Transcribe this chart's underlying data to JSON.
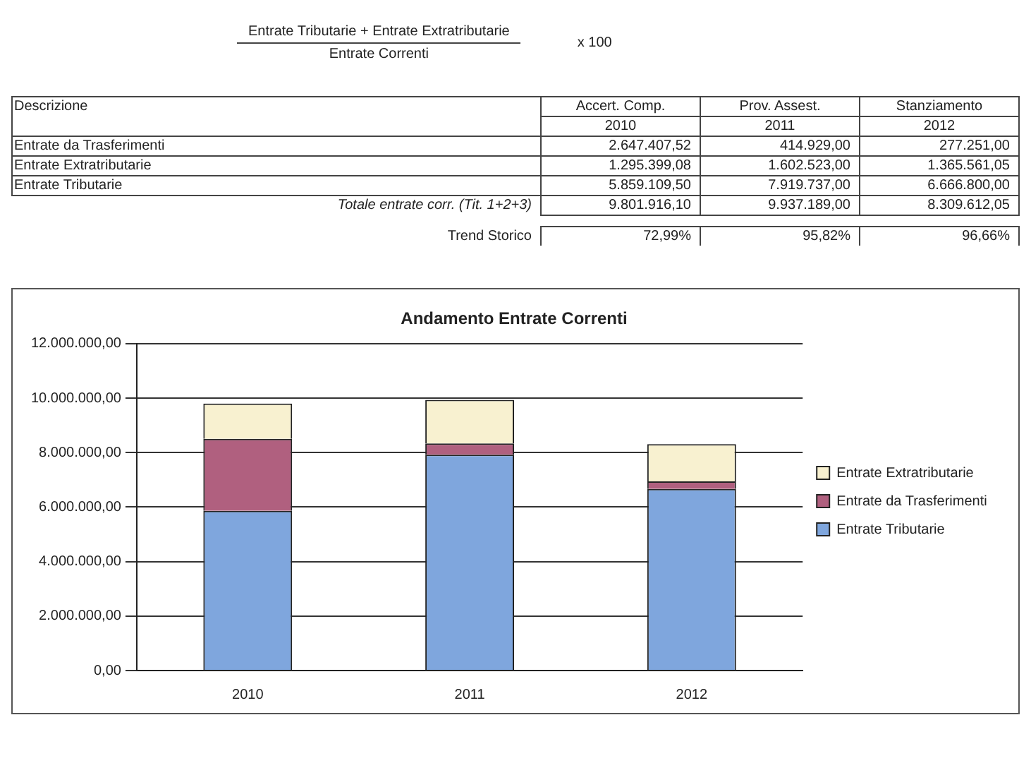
{
  "chart_data": {
    "type": "bar",
    "title": "Andamento Entrate Correnti",
    "categories": [
      "2010",
      "2011",
      "2012"
    ],
    "stacked": true,
    "series": [
      {
        "name": "Entrate Tributarie",
        "color": "#7fa6dd",
        "values": [
          5859109.5,
          7919737,
          6666800
        ]
      },
      {
        "name": "Entrate da Trasferimenti",
        "color": "#b0607f",
        "values": [
          2647407.52,
          414929,
          277251
        ]
      },
      {
        "name": "Entrate Extratributarie",
        "color": "#f8f1d0",
        "values": [
          1295399.08,
          1602523,
          1365561.05
        ]
      }
    ],
    "ylim": [
      0,
      12000000
    ],
    "yticks": [
      {
        "value": 0,
        "label": "0,00"
      },
      {
        "value": 2000000,
        "label": "2.000.000,00"
      },
      {
        "value": 4000000,
        "label": "4.000.000,00"
      },
      {
        "value": 6000000,
        "label": "6.000.000,00"
      },
      {
        "value": 8000000,
        "label": "8.000.000,00"
      },
      {
        "value": 10000000,
        "label": "10.000.000,00"
      },
      {
        "value": 12000000,
        "label": "12.000.000,00"
      }
    ],
    "grid": "y",
    "legend": "right",
    "annotations": [
      "Entrate Tributarie + Entrate Extratributarie",
      "Entrate Correnti",
      "x 100",
      "Descrizione",
      "Accert. Comp.",
      "Prov. Assest.",
      "Stanziamento",
      "2.647.407,52",
      "414.929,00",
      "277.251,00",
      "1.295.399,08",
      "1.602.523,00",
      "1.365.561,05",
      "5.859.109,50",
      "7.919.737,00",
      "6.666.800,00",
      "Totale entrate corr. (Tit. 1+2+3)",
      "9.801.916,10",
      "9.937.189,00",
      "8.309.612,05",
      "Trend Storico",
      "72,99%",
      "95,82%",
      "96,66%"
    ]
  }
}
